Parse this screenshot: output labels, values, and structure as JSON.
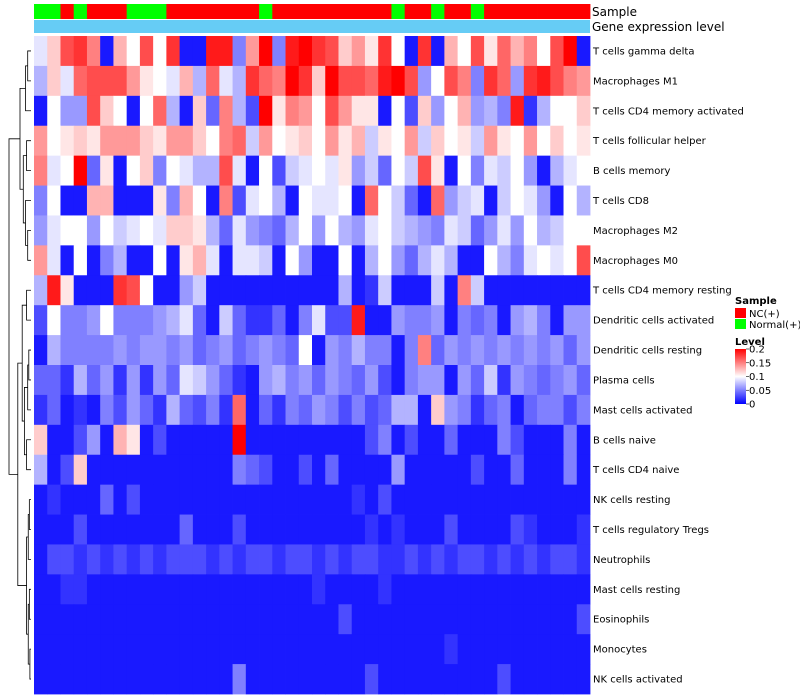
{
  "chart_data": {
    "type": "heatmap",
    "title": "",
    "annotation_labels": {
      "sample": "Sample",
      "gene": "Gene expression level"
    },
    "sample_groups": [
      "N",
      "N",
      "T",
      "N",
      "T",
      "T",
      "T",
      "N",
      "N",
      "N",
      "T",
      "T",
      "T",
      "T",
      "T",
      "T",
      "T",
      "N",
      "T",
      "T",
      "T",
      "T",
      "T",
      "T",
      "T",
      "T",
      "T",
      "N",
      "T",
      "T",
      "N",
      "T",
      "T",
      "N",
      "T",
      "T",
      "T",
      "T",
      "T",
      "T",
      "T",
      "T"
    ],
    "legend_sample": {
      "title": "Sample",
      "items": [
        {
          "key": "T",
          "label": "NC(+)",
          "color": "#ff0000"
        },
        {
          "key": "N",
          "label": "Normal(+)",
          "color": "#00ff00"
        }
      ]
    },
    "legend_level": {
      "title": "Level",
      "ticks": [
        "0.2",
        "0.15",
        "0.1",
        "0.05",
        "0"
      ],
      "min": 0,
      "max": 0.2
    },
    "gene_color": "#66ccf5",
    "value_range": [
      0,
      0.2
    ],
    "rows": [
      {
        "label": "T cells gamma delta",
        "values": [
          0.09,
          0.12,
          0.17,
          0.18,
          0.15,
          0.01,
          0.13,
          0.1,
          0.17,
          0.1,
          0.18,
          0.01,
          0.01,
          0.19,
          0.19,
          0.05,
          0.14,
          0.2,
          0.05,
          0.19,
          0.2,
          0.18,
          0.17,
          0.12,
          0.14,
          0.11,
          0.18,
          0.1,
          0.01,
          0.18,
          0.01,
          0.13,
          0.1,
          0.17,
          0.11,
          0.16,
          0.13,
          0.15,
          0.1,
          0.17,
          0.2,
          0.01
        ]
      },
      {
        "label": "Macrophages M1",
        "values": [
          0.07,
          0.12,
          0.09,
          0.16,
          0.17,
          0.17,
          0.17,
          0.14,
          0.11,
          0.1,
          0.09,
          0.13,
          0.07,
          0.16,
          0.09,
          0.07,
          0.18,
          0.16,
          0.15,
          0.2,
          0.18,
          0.12,
          0.2,
          0.17,
          0.17,
          0.16,
          0.19,
          0.2,
          0.17,
          0.06,
          0.1,
          0.17,
          0.15,
          0.05,
          0.18,
          0.16,
          0.06,
          0.18,
          0.19,
          0.17,
          0.15,
          0.14
        ]
      },
      {
        "label": "T cells CD4 memory activated",
        "values": [
          0.01,
          0.1,
          0.06,
          0.06,
          0.17,
          0.12,
          0.1,
          0.01,
          0.1,
          0.16,
          0.07,
          0.01,
          0.12,
          0.04,
          0.15,
          0.07,
          0.03,
          0.2,
          0.11,
          0.15,
          0.14,
          0.1,
          0.17,
          0.14,
          0.11,
          0.11,
          0.01,
          0.1,
          0.03,
          0.12,
          0.06,
          0.1,
          0.13,
          0.06,
          0.07,
          0.05,
          0.19,
          0.02,
          0.07,
          0.1,
          0.1,
          0.12
        ]
      },
      {
        "label": "T cells follicular helper",
        "values": [
          0.14,
          0.1,
          0.11,
          0.12,
          0.11,
          0.14,
          0.14,
          0.14,
          0.12,
          0.11,
          0.14,
          0.14,
          0.12,
          0.1,
          0.15,
          0.16,
          0.08,
          0.14,
          0.1,
          0.11,
          0.12,
          0.1,
          0.14,
          0.11,
          0.13,
          0.08,
          0.11,
          0.1,
          0.14,
          0.08,
          0.12,
          0.1,
          0.11,
          0.08,
          0.14,
          0.11,
          0.1,
          0.14,
          0.1,
          0.12,
          0.1,
          0.11
        ]
      },
      {
        "label": "B cells memory",
        "values": [
          0.15,
          0.09,
          0.1,
          0.2,
          0.04,
          0.11,
          0.01,
          0.1,
          0.12,
          0.05,
          0.1,
          0.09,
          0.07,
          0.07,
          0.17,
          0.09,
          0.01,
          0.1,
          0.03,
          0.08,
          0.09,
          0.1,
          0.09,
          0.11,
          0.06,
          0.08,
          0.04,
          0.1,
          0.08,
          0.17,
          0.11,
          0.01,
          0.1,
          0.05,
          0.09,
          0.08,
          0.1,
          0.06,
          0.01,
          0.07,
          0.09,
          0.1
        ]
      },
      {
        "label": "T cells CD8",
        "values": [
          0.05,
          0.1,
          0.01,
          0.01,
          0.13,
          0.13,
          0.01,
          0.01,
          0.01,
          0.11,
          0.05,
          0.13,
          0.1,
          0.01,
          0.15,
          0.03,
          0.09,
          0.1,
          0.07,
          0.01,
          0.1,
          0.09,
          0.09,
          0.1,
          0.01,
          0.16,
          0.1,
          0.08,
          0.04,
          0.01,
          0.16,
          0.06,
          0.08,
          0.09,
          0.01,
          0.08,
          0.1,
          0.09,
          0.06,
          0.01,
          0.1,
          0.07
        ]
      },
      {
        "label": "Macrophages M2",
        "values": [
          0.06,
          0.09,
          0.1,
          0.1,
          0.06,
          0.1,
          0.08,
          0.09,
          0.1,
          0.09,
          0.12,
          0.12,
          0.11,
          0.07,
          0.04,
          0.09,
          0.06,
          0.05,
          0.04,
          0.07,
          0.1,
          0.06,
          0.1,
          0.07,
          0.06,
          0.09,
          0.1,
          0.08,
          0.07,
          0.06,
          0.05,
          0.09,
          0.08,
          0.04,
          0.06,
          0.09,
          0.06,
          0.1,
          0.07,
          0.08,
          0.1,
          0.1
        ]
      },
      {
        "label": "Macrophages M0",
        "values": [
          0.14,
          0.09,
          0.01,
          0.1,
          0.01,
          0.05,
          0.07,
          0.01,
          0.01,
          0.1,
          0.01,
          0.11,
          0.13,
          0.09,
          0.01,
          0.09,
          0.09,
          0.08,
          0.01,
          0.1,
          0.06,
          0.01,
          0.01,
          0.1,
          0.01,
          0.07,
          0.1,
          0.06,
          0.04,
          0.07,
          0.09,
          0.07,
          0.01,
          0.01,
          0.1,
          0.07,
          0.05,
          0.09,
          0.1,
          0.09,
          0.1,
          0.17
        ]
      },
      {
        "label": "T cells CD4 memory resting",
        "values": [
          0.07,
          0.19,
          0.11,
          0.01,
          0.01,
          0.01,
          0.18,
          0.17,
          0.1,
          0.01,
          0.01,
          0.06,
          0.08,
          0.01,
          0.01,
          0.01,
          0.01,
          0.01,
          0.01,
          0.01,
          0.01,
          0.01,
          0.01,
          0.07,
          0.01,
          0.02,
          0.08,
          0.01,
          0.01,
          0.01,
          0.08,
          0.01,
          0.15,
          0.08,
          0.01,
          0.01,
          0.01,
          0.01,
          0.01,
          0.01,
          0.01,
          0.01
        ]
      },
      {
        "label": "Dendritic cells activated",
        "values": [
          0.03,
          0.1,
          0.05,
          0.05,
          0.06,
          0.1,
          0.05,
          0.05,
          0.05,
          0.06,
          0.07,
          0.09,
          0.04,
          0.01,
          0.08,
          0.04,
          0.02,
          0.02,
          0.04,
          0.01,
          0.05,
          0.09,
          0.03,
          0.03,
          0.19,
          0.01,
          0.01,
          0.06,
          0.05,
          0.05,
          0.06,
          0.01,
          0.05,
          0.04,
          0.05,
          0.01,
          0.06,
          0.07,
          0.05,
          0.01,
          0.06,
          0.06
        ]
      },
      {
        "label": "Dendritic cells resting",
        "values": [
          0.01,
          0.07,
          0.05,
          0.05,
          0.05,
          0.05,
          0.06,
          0.05,
          0.06,
          0.06,
          0.05,
          0.06,
          0.04,
          0.05,
          0.06,
          0.04,
          0.05,
          0.06,
          0.05,
          0.04,
          0.1,
          0.01,
          0.06,
          0.05,
          0.07,
          0.05,
          0.05,
          0.01,
          0.05,
          0.15,
          0.04,
          0.06,
          0.05,
          0.06,
          0.05,
          0.06,
          0.05,
          0.06,
          0.05,
          0.06,
          0.04,
          0.06
        ]
      },
      {
        "label": "Plasma cells",
        "values": [
          0.04,
          0.04,
          0.02,
          0.07,
          0.04,
          0.06,
          0.02,
          0.06,
          0.02,
          0.06,
          0.04,
          0.09,
          0.08,
          0.06,
          0.04,
          0.02,
          0.01,
          0.06,
          0.07,
          0.05,
          0.06,
          0.04,
          0.06,
          0.05,
          0.04,
          0.06,
          0.03,
          0.01,
          0.05,
          0.06,
          0.06,
          0.01,
          0.06,
          0.04,
          0.08,
          0.02,
          0.06,
          0.05,
          0.04,
          0.05,
          0.06,
          0.04
        ]
      },
      {
        "label": "Mast cells activated",
        "values": [
          0.02,
          0.04,
          0.01,
          0.02,
          0.01,
          0.05,
          0.03,
          0.06,
          0.04,
          0.02,
          0.07,
          0.04,
          0.03,
          0.05,
          0.02,
          0.16,
          0.01,
          0.04,
          0.02,
          0.05,
          0.04,
          0.06,
          0.05,
          0.03,
          0.05,
          0.03,
          0.04,
          0.07,
          0.07,
          0.01,
          0.12,
          0.06,
          0.05,
          0.02,
          0.04,
          0.05,
          0.01,
          0.04,
          0.05,
          0.05,
          0.03,
          0.05
        ]
      },
      {
        "label": "B cells naive",
        "values": [
          0.12,
          0.01,
          0.01,
          0.03,
          0.06,
          0.01,
          0.13,
          0.11,
          0.01,
          0.03,
          0.01,
          0.01,
          0.01,
          0.01,
          0.01,
          0.2,
          0.01,
          0.01,
          0.01,
          0.01,
          0.01,
          0.01,
          0.01,
          0.01,
          0.01,
          0.03,
          0.05,
          0.01,
          0.03,
          0.01,
          0.01,
          0.04,
          0.01,
          0.01,
          0.01,
          0.05,
          0.03,
          0.01,
          0.01,
          0.01,
          0.05,
          0.01
        ]
      },
      {
        "label": "T cells CD4 naive",
        "values": [
          0.07,
          0.01,
          0.03,
          0.12,
          0.01,
          0.01,
          0.01,
          0.01,
          0.01,
          0.01,
          0.01,
          0.01,
          0.01,
          0.01,
          0.01,
          0.05,
          0.04,
          0.03,
          0.01,
          0.01,
          0.03,
          0.01,
          0.04,
          0.01,
          0.01,
          0.01,
          0.01,
          0.06,
          0.01,
          0.01,
          0.01,
          0.01,
          0.01,
          0.03,
          0.01,
          0.01,
          0.04,
          0.01,
          0.01,
          0.01,
          0.05,
          0.01
        ]
      },
      {
        "label": "NK cells resting",
        "values": [
          0.01,
          0.02,
          0.01,
          0.01,
          0.01,
          0.04,
          0.01,
          0.03,
          0.01,
          0.01,
          0.01,
          0.01,
          0.01,
          0.01,
          0.01,
          0.01,
          0.01,
          0.01,
          0.01,
          0.01,
          0.01,
          0.01,
          0.01,
          0.01,
          0.02,
          0.01,
          0.03,
          0.01,
          0.01,
          0.01,
          0.01,
          0.01,
          0.01,
          0.01,
          0.01,
          0.01,
          0.01,
          0.01,
          0.01,
          0.01,
          0.01,
          0.01
        ]
      },
      {
        "label": "T cells regulatory  Tregs",
        "values": [
          0.01,
          0.01,
          0.01,
          0.03,
          0.01,
          0.01,
          0.01,
          0.01,
          0.01,
          0.01,
          0.01,
          0.04,
          0.01,
          0.01,
          0.01,
          0.03,
          0.01,
          0.01,
          0.01,
          0.01,
          0.01,
          0.01,
          0.01,
          0.01,
          0.01,
          0.02,
          0.01,
          0.02,
          0.01,
          0.01,
          0.01,
          0.03,
          0.01,
          0.01,
          0.01,
          0.01,
          0.03,
          0.02,
          0.01,
          0.01,
          0.01,
          0.02
        ]
      },
      {
        "label": "Neutrophils",
        "values": [
          0.01,
          0.03,
          0.03,
          0.02,
          0.03,
          0.02,
          0.03,
          0.02,
          0.03,
          0.02,
          0.03,
          0.03,
          0.03,
          0.02,
          0.03,
          0.02,
          0.03,
          0.03,
          0.02,
          0.03,
          0.03,
          0.02,
          0.03,
          0.02,
          0.03,
          0.03,
          0.02,
          0.02,
          0.03,
          0.02,
          0.03,
          0.02,
          0.03,
          0.03,
          0.02,
          0.03,
          0.02,
          0.03,
          0.02,
          0.03,
          0.03,
          0.02
        ]
      },
      {
        "label": "Mast cells resting",
        "values": [
          0.01,
          0.01,
          0.02,
          0.02,
          0.01,
          0.01,
          0.01,
          0.01,
          0.01,
          0.01,
          0.01,
          0.01,
          0.01,
          0.01,
          0.01,
          0.01,
          0.01,
          0.01,
          0.01,
          0.01,
          0.01,
          0.02,
          0.01,
          0.01,
          0.01,
          0.01,
          0.02,
          0.01,
          0.01,
          0.01,
          0.01,
          0.01,
          0.01,
          0.01,
          0.01,
          0.01,
          0.01,
          0.01,
          0.01,
          0.01,
          0.01,
          0.01
        ]
      },
      {
        "label": "Eosinophils",
        "values": [
          0.01,
          0.01,
          0.01,
          0.01,
          0.01,
          0.01,
          0.01,
          0.01,
          0.01,
          0.01,
          0.01,
          0.01,
          0.01,
          0.01,
          0.01,
          0.01,
          0.01,
          0.01,
          0.01,
          0.01,
          0.01,
          0.01,
          0.01,
          0.03,
          0.01,
          0.01,
          0.01,
          0.01,
          0.01,
          0.01,
          0.01,
          0.01,
          0.01,
          0.01,
          0.01,
          0.01,
          0.01,
          0.01,
          0.01,
          0.01,
          0.01,
          0.03
        ]
      },
      {
        "label": "Monocytes",
        "values": [
          0.01,
          0.01,
          0.01,
          0.01,
          0.01,
          0.01,
          0.01,
          0.01,
          0.01,
          0.01,
          0.01,
          0.01,
          0.01,
          0.01,
          0.01,
          0.01,
          0.01,
          0.01,
          0.01,
          0.01,
          0.01,
          0.01,
          0.01,
          0.01,
          0.01,
          0.01,
          0.01,
          0.01,
          0.01,
          0.01,
          0.01,
          0.02,
          0.01,
          0.01,
          0.01,
          0.01,
          0.01,
          0.01,
          0.01,
          0.01,
          0.01,
          0.01
        ]
      },
      {
        "label": "NK cells activated",
        "values": [
          0.01,
          0.01,
          0.01,
          0.01,
          0.01,
          0.01,
          0.01,
          0.01,
          0.01,
          0.01,
          0.01,
          0.01,
          0.01,
          0.01,
          0.01,
          0.05,
          0.01,
          0.01,
          0.01,
          0.01,
          0.01,
          0.01,
          0.01,
          0.01,
          0.01,
          0.03,
          0.01,
          0.01,
          0.01,
          0.01,
          0.01,
          0.01,
          0.01,
          0.01,
          0.01,
          0.03,
          0.01,
          0.01,
          0.01,
          0.01,
          0.01,
          0.01
        ]
      }
    ]
  }
}
